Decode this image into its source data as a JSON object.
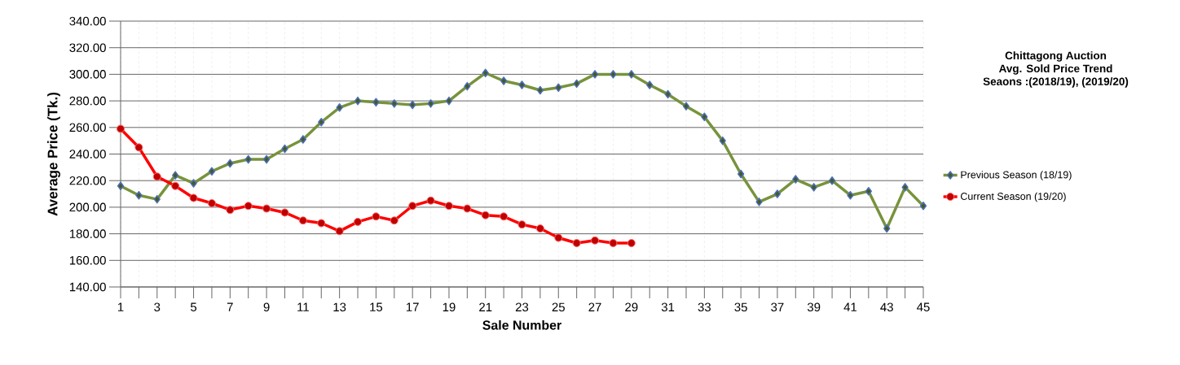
{
  "chart_data": {
    "type": "line",
    "title": "Chittagong Auction\nAvg. Sold Price Trend\nSeaons :(2018/19), (2019/20)",
    "xlabel": "Sale Number",
    "ylabel": "Average Price (Tk.)",
    "x": [
      1,
      2,
      3,
      4,
      5,
      6,
      7,
      8,
      9,
      10,
      11,
      12,
      13,
      14,
      15,
      16,
      17,
      18,
      19,
      20,
      21,
      22,
      23,
      24,
      25,
      26,
      27,
      28,
      29,
      30,
      31,
      32,
      33,
      34,
      35,
      36,
      37,
      38,
      39,
      40,
      41,
      42,
      43,
      44,
      45
    ],
    "series": [
      {
        "name": "Previous Season (18/19)",
        "color": "#77933c",
        "marker": "diamond",
        "values": [
          216,
          209,
          206,
          224,
          218,
          227,
          233,
          236,
          236,
          244,
          251,
          264,
          275,
          280,
          279,
          278,
          277,
          278,
          280,
          291,
          301,
          295,
          292,
          288,
          290,
          293,
          300,
          300,
          300,
          292,
          285,
          276,
          268,
          250,
          225,
          204,
          210,
          221,
          215,
          220,
          209,
          212,
          184,
          215,
          201
        ]
      },
      {
        "name": "Current Season (19/20)",
        "color": "#ff0000",
        "marker": "circle",
        "values": [
          259,
          245,
          223,
          216,
          207,
          203,
          198,
          201,
          199,
          196,
          190,
          188,
          182,
          189,
          193,
          190,
          201,
          205,
          201,
          199,
          194,
          193,
          187,
          184,
          177,
          173,
          175,
          173,
          173,
          null,
          null,
          null,
          null,
          null,
          null,
          null,
          null,
          null,
          null,
          null,
          null,
          null,
          null,
          null,
          null
        ]
      }
    ],
    "xlim": [
      1,
      45
    ],
    "xticks": [
      1,
      {
        "value": 2,
        "label": null
      },
      3,
      {
        "value": 4,
        "label": null
      },
      5,
      {
        "value": 6,
        "label": null
      },
      7,
      {
        "value": 8,
        "label": null
      },
      9,
      {
        "value": 10,
        "label": null
      },
      11,
      {
        "value": 12,
        "label": null
      },
      13,
      {
        "value": 14,
        "label": null
      },
      15,
      {
        "value": 16,
        "label": null
      },
      17,
      {
        "value": 18,
        "label": null
      },
      19,
      {
        "value": 20,
        "label": null
      },
      21,
      {
        "value": 22,
        "label": null
      },
      23,
      {
        "value": 24,
        "label": null
      },
      25,
      {
        "value": 26,
        "label": null
      },
      27,
      {
        "value": 28,
        "label": null
      },
      29,
      {
        "value": 30,
        "label": null
      },
      31,
      {
        "value": 32,
        "label": null
      },
      33,
      {
        "value": 34,
        "label": null
      },
      35,
      {
        "value": 36,
        "label": null
      },
      37,
      {
        "value": 38,
        "label": null
      },
      39,
      {
        "value": 40,
        "label": null
      },
      41,
      {
        "value": 42,
        "label": null
      },
      43,
      {
        "value": 44,
        "label": null
      },
      45
    ],
    "ylim": [
      140,
      340
    ],
    "yticks": [
      {
        "value": 140,
        "label": "140.00"
      },
      {
        "value": 160,
        "label": "160.00"
      },
      {
        "value": 180,
        "label": "180.00"
      },
      {
        "value": 200,
        "label": "200.00"
      },
      {
        "value": 220,
        "label": "220.00"
      },
      {
        "value": 240,
        "label": "240.00"
      },
      {
        "value": 260,
        "label": "260.00"
      },
      {
        "value": 280,
        "label": "280.00"
      },
      {
        "value": 300,
        "label": "300.00"
      },
      {
        "value": 320,
        "label": "320.00"
      },
      {
        "value": 340,
        "label": "340.00"
      }
    ],
    "grid": true,
    "legend": "right",
    "line_style": "solid"
  }
}
